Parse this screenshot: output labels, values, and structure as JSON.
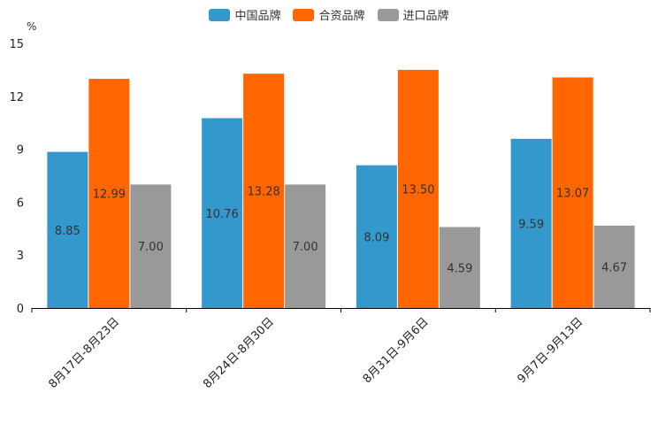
{
  "chart_data": {
    "type": "bar",
    "ylabel": "%",
    "ylim": [
      0,
      15
    ],
    "yticks": [
      "0",
      "3",
      "6",
      "9",
      "12",
      "15"
    ],
    "categories": [
      "8月17日-8月23日",
      "8月24日-8月30日",
      "8月31日-9月6日",
      "9月7日-9月13日"
    ],
    "series": [
      {
        "name": "中国品牌",
        "color": "#3399cc",
        "values": [
          8.85,
          10.76,
          8.09,
          9.59
        ],
        "labels": [
          "8.85",
          "10.76",
          "8.09",
          "9.59"
        ]
      },
      {
        "name": "合资品牌",
        "color": "#ff6600",
        "values": [
          12.99,
          13.28,
          13.5,
          13.07
        ],
        "labels": [
          "12.99",
          "13.28",
          "13.50",
          "13.07"
        ]
      },
      {
        "name": "进口品牌",
        "color": "#999999",
        "values": [
          7.0,
          7.0,
          4.59,
          4.67
        ],
        "labels": [
          "7.00",
          "7.00",
          "4.59",
          "4.67"
        ]
      }
    ]
  }
}
